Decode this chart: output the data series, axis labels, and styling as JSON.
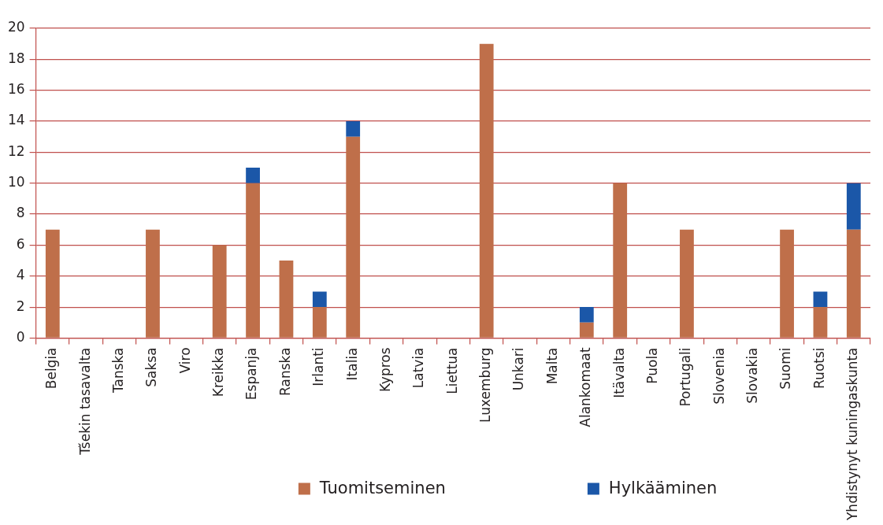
{
  "chart_data": {
    "type": "bar",
    "stacked": true,
    "categories": [
      "Belgia",
      "Tšekin tasavalta",
      "Tanska",
      "Saksa",
      "Viro",
      "Kreikka",
      "Espanja",
      "Ranska",
      "Irlanti",
      "Italia",
      "Kypros",
      "Latvia",
      "Liettua",
      "Luxemburg",
      "Unkari",
      "Malta",
      "Alankomaat",
      "Itävalta",
      "Puola",
      "Portugali",
      "Slovenia",
      "Slovakia",
      "Suomi",
      "Ruotsi",
      "Yhdistynyt kuningaskunta"
    ],
    "series": [
      {
        "name": "Tuomitseminen",
        "color": "#bf6f4a",
        "values": [
          7,
          0,
          0,
          7,
          0,
          6,
          10,
          5,
          2,
          13,
          0,
          0,
          0,
          19,
          0,
          0,
          1,
          10,
          0,
          7,
          0,
          0,
          7,
          2,
          7
        ]
      },
      {
        "name": "Hylkääminen",
        "color": "#1b57a8",
        "values": [
          0,
          0,
          0,
          0,
          0,
          0,
          1,
          0,
          1,
          1,
          0,
          0,
          0,
          0,
          0,
          0,
          1,
          0,
          0,
          0,
          0,
          0,
          0,
          1,
          3
        ]
      }
    ],
    "ylim": [
      0,
      20
    ],
    "yticks": [
      0,
      2,
      4,
      6,
      8,
      10,
      12,
      14,
      16,
      18,
      20
    ],
    "grid": "y",
    "legend": "bottom"
  }
}
